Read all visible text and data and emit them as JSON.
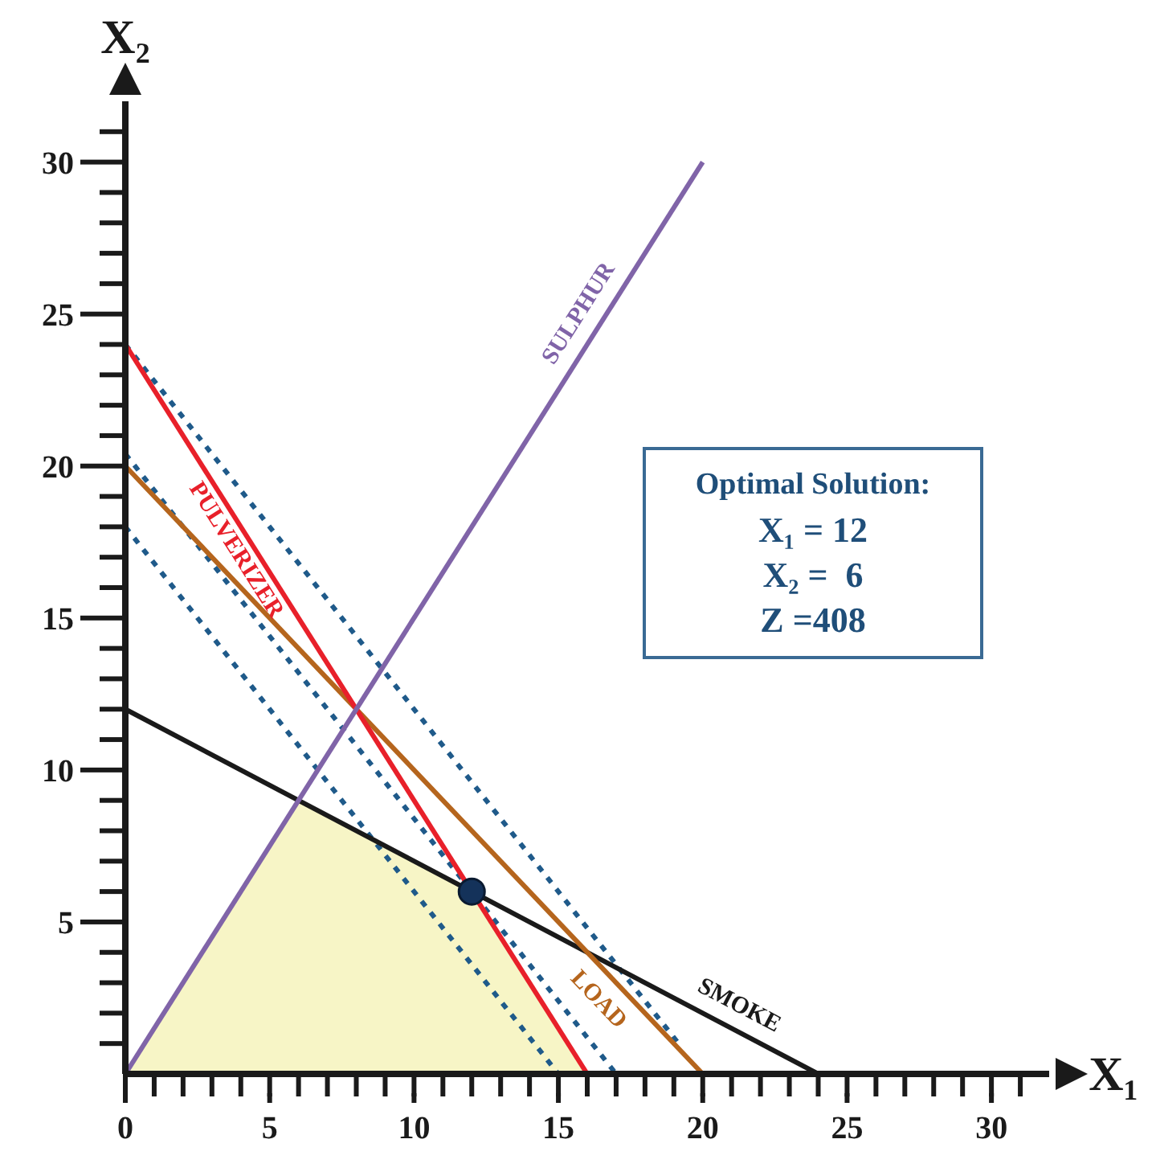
{
  "chart_data": {
    "type": "line",
    "xlabel": "X₁",
    "ylabel": "X₂",
    "xlim": [
      0,
      32
    ],
    "ylim": [
      0,
      32
    ],
    "xticks": [
      0,
      {
        "value": 1,
        "label": null
      },
      {
        "value": 2,
        "label": null
      },
      {
        "value": 3,
        "label": null
      },
      {
        "value": 4,
        "label": null
      },
      5,
      {
        "value": 6,
        "label": null
      },
      {
        "value": 7,
        "label": null
      },
      {
        "value": 8,
        "label": null
      },
      {
        "value": 9,
        "label": null
      },
      10,
      {
        "value": 11,
        "label": null
      },
      {
        "value": 12,
        "label": null
      },
      {
        "value": 13,
        "label": null
      },
      {
        "value": 14,
        "label": null
      },
      15,
      {
        "value": 16,
        "label": null
      },
      {
        "value": 17,
        "label": null
      },
      {
        "value": 18,
        "label": null
      },
      {
        "value": 19,
        "label": null
      },
      20,
      {
        "value": 21,
        "label": null
      },
      {
        "value": 22,
        "label": null
      },
      {
        "value": 23,
        "label": null
      },
      {
        "value": 24,
        "label": null
      },
      25,
      {
        "value": 26,
        "label": null
      },
      {
        "value": 27,
        "label": null
      },
      {
        "value": 28,
        "label": null
      },
      {
        "value": 29,
        "label": null
      },
      30,
      {
        "value": 31,
        "label": null
      }
    ],
    "yticks": [
      {
        "value": 1,
        "label": null
      },
      {
        "value": 2,
        "label": null
      },
      {
        "value": 3,
        "label": null
      },
      {
        "value": 4,
        "label": null
      },
      5,
      {
        "value": 6,
        "label": null
      },
      {
        "value": 7,
        "label": null
      },
      {
        "value": 8,
        "label": null
      },
      {
        "value": 9,
        "label": null
      },
      10,
      {
        "value": 11,
        "label": null
      },
      {
        "value": 12,
        "label": null
      },
      {
        "value": 13,
        "label": null
      },
      {
        "value": 14,
        "label": null
      },
      15,
      {
        "value": 16,
        "label": null
      },
      {
        "value": 17,
        "label": null
      },
      {
        "value": 18,
        "label": null
      },
      {
        "value": 19,
        "label": null
      },
      20,
      {
        "value": 21,
        "label": null
      },
      {
        "value": 22,
        "label": null
      },
      {
        "value": 23,
        "label": null
      },
      {
        "value": 24,
        "label": null
      },
      25,
      {
        "value": 26,
        "label": null
      },
      {
        "value": 27,
        "label": null
      },
      {
        "value": 28,
        "label": null
      },
      {
        "value": 29,
        "label": null
      },
      30,
      {
        "value": 31,
        "label": null
      }
    ],
    "grid": false,
    "marker": "none",
    "series": [
      {
        "type": "area",
        "color": "#f7f5c6",
        "x": [
          0,
          6,
          12,
          16
        ],
        "values": [
          0,
          9,
          6,
          0
        ]
      },
      {
        "color": "#1f5a8a",
        "line_style": "dotted",
        "x": [
          0,
          15
        ],
        "values": [
          18,
          0
        ]
      },
      {
        "color": "#1f5a8a",
        "line_style": "dotted",
        "x": [
          0,
          17
        ],
        "values": [
          20.4,
          0
        ]
      },
      {
        "color": "#1f5a8a",
        "line_style": "dotted",
        "x": [
          0,
          19.2
        ],
        "values": [
          24,
          0.96
        ]
      },
      {
        "name": "SMOKE",
        "color": "#1a1a1a",
        "line_style": "solid",
        "x": [
          0,
          24
        ],
        "values": [
          12,
          0
        ]
      },
      {
        "name": "LOAD",
        "color": "#b5651d",
        "line_style": "solid",
        "x": [
          0,
          20
        ],
        "values": [
          20,
          0
        ]
      },
      {
        "name": "PULVERIZER",
        "color": "#e8202a",
        "line_style": "solid",
        "x": [
          0,
          16
        ],
        "values": [
          24,
          0
        ]
      },
      {
        "name": "SULPHUR",
        "color": "#8064a8",
        "line_style": "solid",
        "x": [
          0,
          20
        ],
        "values": [
          0,
          30
        ]
      },
      {
        "type": "scatter",
        "color": "#14325a",
        "marker": "circle",
        "x": [
          12
        ],
        "values": [
          6
        ]
      }
    ],
    "annotations": [
      "Optimal Solution:",
      "X₁ = 12",
      "X₂ =  6",
      "Z =408"
    ]
  }
}
